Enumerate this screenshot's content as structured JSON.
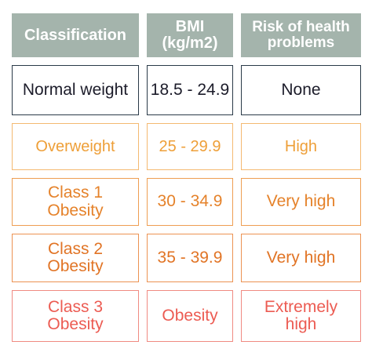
{
  "table": {
    "headers": {
      "classification": "Classification",
      "bmi": "BMI\n(kg/m2)",
      "risk": "Risk of health\nproblems"
    },
    "rows": [
      {
        "classification": "Normal weight",
        "bmi": "18.5 - 24.9",
        "risk": "None"
      },
      {
        "classification": "Overweight",
        "bmi": "25 - 29.9",
        "risk": "High"
      },
      {
        "classification": "Class 1\nObesity",
        "bmi": "30 - 34.9",
        "risk": "Very high"
      },
      {
        "classification": "Class 2\nObesity",
        "bmi": "35 - 39.9",
        "risk": "Very high"
      },
      {
        "classification": "Class 3\nObesity",
        "bmi": "Obesity",
        "risk": "Extremely\nhigh"
      }
    ]
  },
  "colors": {
    "header_bg": "#a4b4ac",
    "normal": "#1c1c2a",
    "overweight": "#ee9f38",
    "class1": "#e5822a",
    "class2": "#e17425",
    "class3": "#ec5b52"
  }
}
